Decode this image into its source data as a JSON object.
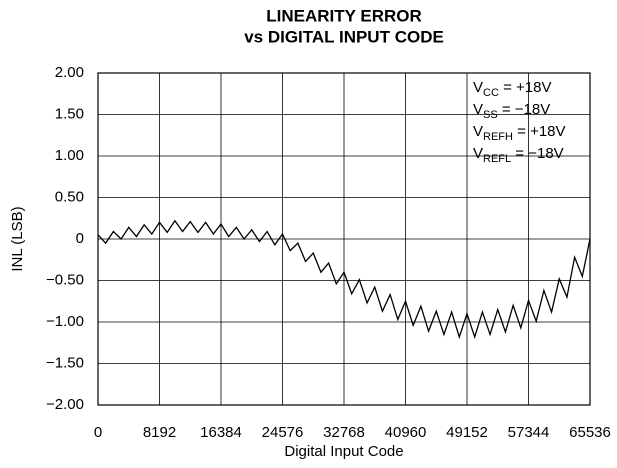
{
  "chart_data": {
    "type": "line",
    "title": "LINEARITY ERROR",
    "subtitle": "vs DIGITAL INPUT CODE",
    "x_label": "Digital Input Code",
    "y_label": "INL (LSB)",
    "xlim": [
      0,
      65536
    ],
    "xticks": [
      0,
      8192,
      16384,
      24576,
      32768,
      40960,
      49152,
      57344,
      65536
    ],
    "ylim": [
      -2,
      2
    ],
    "yticks": [
      {
        "value": -2,
        "label": "−2.00"
      },
      {
        "value": -1.5,
        "label": "−1.50"
      },
      {
        "value": -1,
        "label": "−1.00"
      },
      {
        "value": -0.5,
        "label": "−0.50"
      },
      0,
      {
        "value": 0.5,
        "label": "0.50"
      },
      {
        "value": 1,
        "label": "1.00"
      },
      {
        "value": 1.5,
        "label": "1.50"
      },
      {
        "value": 2,
        "label": "2.00"
      }
    ],
    "grid": true,
    "annotations": [
      {
        "base": "V",
        "sub": "CC",
        "text": " = +18V"
      },
      {
        "base": "V",
        "sub": "SS",
        "text": " = −18V"
      },
      {
        "base": "V",
        "sub": "REFH",
        "text": " = +18V"
      },
      {
        "base": "V",
        "sub": "REFL",
        "text": " = −18V"
      }
    ],
    "series": [
      {
        "name": "INL",
        "color": "#000000",
        "x": [
          0,
          1024,
          2048,
          3072,
          4096,
          5120,
          6144,
          7168,
          8192,
          9216,
          10240,
          11264,
          12288,
          13312,
          14336,
          15360,
          16384,
          17408,
          18432,
          19456,
          20480,
          21504,
          22528,
          23552,
          24576,
          25600,
          26624,
          27648,
          28672,
          29696,
          30720,
          31744,
          32768,
          33792,
          34816,
          35840,
          36864,
          37888,
          38912,
          39936,
          40960,
          41984,
          43008,
          44032,
          45056,
          46080,
          47104,
          48128,
          49152,
          50176,
          51200,
          52224,
          53248,
          54272,
          55296,
          56320,
          57344,
          58368,
          59392,
          60416,
          61440,
          62464,
          63488,
          64512,
          65536
        ],
        "values": [
          0.05,
          -0.05,
          0.09,
          0.0,
          0.14,
          0.03,
          0.17,
          0.06,
          0.2,
          0.08,
          0.22,
          0.09,
          0.21,
          0.08,
          0.2,
          0.06,
          0.18,
          0.03,
          0.14,
          0.0,
          0.11,
          -0.03,
          0.09,
          -0.07,
          0.06,
          -0.14,
          -0.05,
          -0.27,
          -0.17,
          -0.4,
          -0.29,
          -0.54,
          -0.4,
          -0.66,
          -0.49,
          -0.77,
          -0.58,
          -0.87,
          -0.67,
          -0.97,
          -0.75,
          -1.04,
          -0.81,
          -1.11,
          -0.87,
          -1.15,
          -0.88,
          -1.18,
          -0.9,
          -1.18,
          -0.88,
          -1.15,
          -0.85,
          -1.12,
          -0.8,
          -1.07,
          -0.74,
          -0.99,
          -0.62,
          -0.88,
          -0.48,
          -0.7,
          -0.22,
          -0.45,
          0.0
        ]
      }
    ]
  }
}
